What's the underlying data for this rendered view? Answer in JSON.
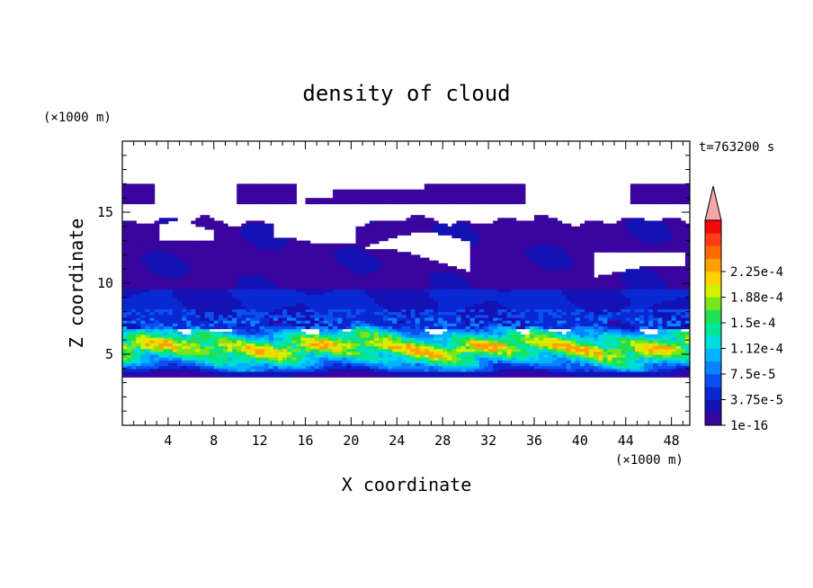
{
  "chart_data": {
    "type": "heatmap",
    "title": "density of cloud",
    "xlabel": "X coordinate",
    "ylabel": "Z coordinate",
    "x_unit": "(×1000 m)",
    "y_unit": "(×1000 m)",
    "time_label": "t=763200 s",
    "xlim": [
      0,
      49.6
    ],
    "ylim": [
      0,
      20
    ],
    "x_ticks": [
      4,
      8,
      12,
      16,
      20,
      24,
      28,
      32,
      36,
      40,
      44,
      48
    ],
    "y_ticks": [
      5,
      10,
      15
    ],
    "grid": false,
    "colorbar": {
      "levels": [
        "1e-16",
        "3.75e-5",
        "7.5e-5",
        "1.12e-4",
        "1.5e-4",
        "1.88e-4",
        "2.25e-4"
      ],
      "colors": [
        "#3a049e",
        "#1412b4",
        "#0a28d2",
        "#0a50f0",
        "#0a82ff",
        "#00b4ff",
        "#00dcdc",
        "#00e69a",
        "#20e050",
        "#78e61e",
        "#d2f000",
        "#ffd200",
        "#ffa000",
        "#ff6a00",
        "#ff3c14",
        "#f00a0a"
      ],
      "overflow_color": "#f5a5a5"
    },
    "cloud_layers": [
      {
        "z_bottom": 3.3,
        "z_top": 6.8,
        "max_value": 0.0002,
        "description": "dense layer"
      },
      {
        "z_bottom": 6.8,
        "z_top": 14.3,
        "max_value": 4e-05,
        "description": "thin upper layer"
      },
      {
        "z_bottom": 15.4,
        "z_top": 16.8,
        "max_value": 1e-05,
        "description": "scattered top patches"
      }
    ]
  }
}
